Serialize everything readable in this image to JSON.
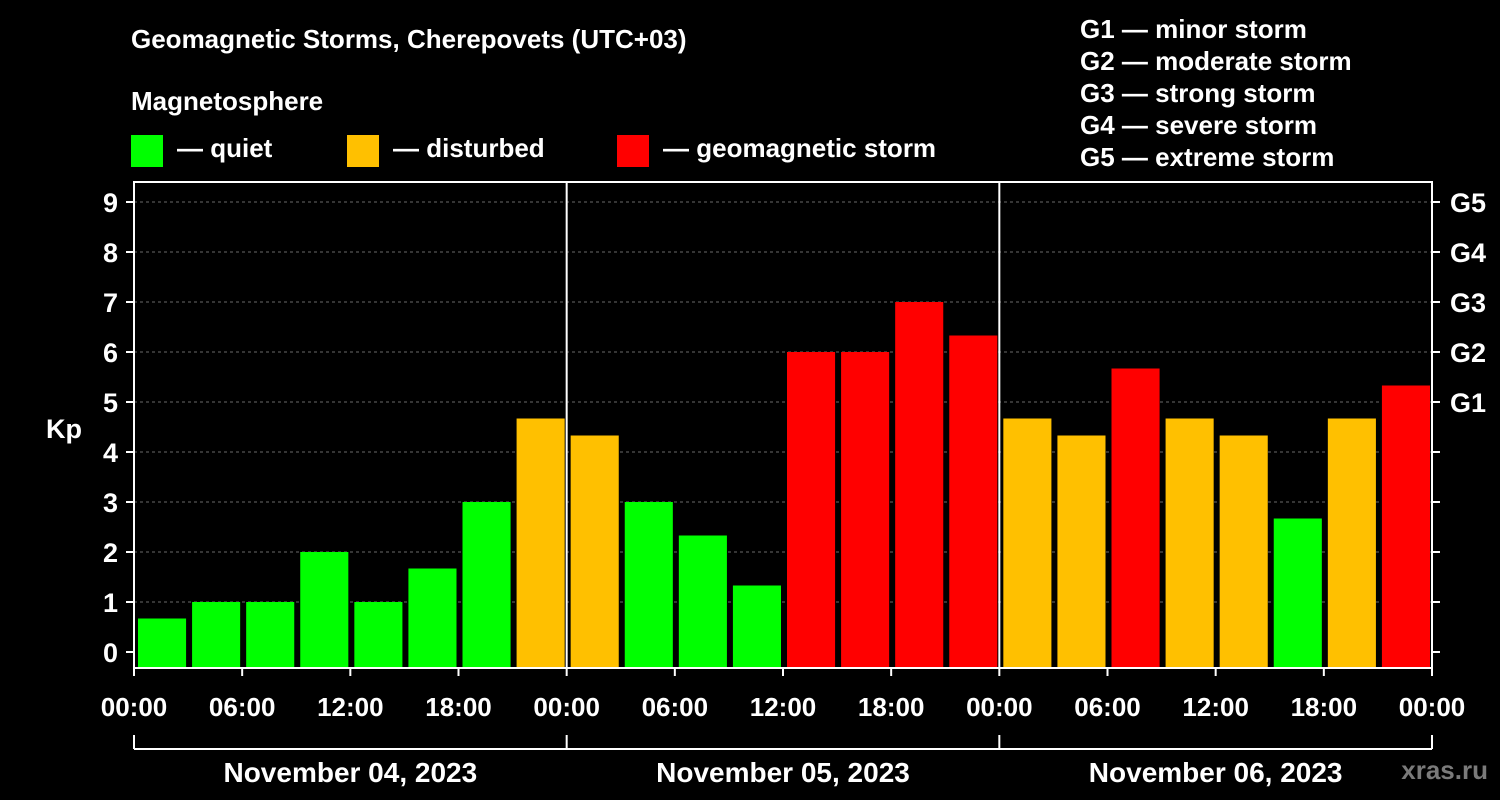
{
  "header": {
    "title": "Geomagnetic Storms, Cherepovets (UTC+03)",
    "subtitle": "Magnetosphere"
  },
  "legend": [
    {
      "label": "— quiet",
      "color": "#00ff00"
    },
    {
      "label": "— disturbed",
      "color": "#ffc000"
    },
    {
      "label": "— geomagnetic storm",
      "color": "#ff0000"
    }
  ],
  "storm_scale": [
    "G1 — minor storm",
    "G2 — moderate storm",
    "G3 — strong storm",
    "G4 — severe storm",
    "G5 — extreme storm"
  ],
  "watermark": "xras.ru",
  "chart_data": {
    "type": "bar",
    "ylabel": "Kp",
    "ylim": [
      0,
      9
    ],
    "y_ticks": [
      "0",
      "1",
      "2",
      "3",
      "4",
      "5",
      "6",
      "7",
      "8",
      "9"
    ],
    "right_ticks": [
      {
        "kp": 5,
        "label": "G1"
      },
      {
        "kp": 6,
        "label": "G2"
      },
      {
        "kp": 7,
        "label": "G3"
      },
      {
        "kp": 8,
        "label": "G4"
      },
      {
        "kp": 9,
        "label": "G5"
      }
    ],
    "x_tick_labels": [
      "00:00",
      "06:00",
      "12:00",
      "18:00",
      "00:00",
      "06:00",
      "12:00",
      "18:00",
      "00:00",
      "06:00",
      "12:00",
      "18:00",
      "00:00"
    ],
    "days": [
      "November 04, 2023",
      "November 05, 2023",
      "November 06, 2023"
    ],
    "grid": "horizontal dashed",
    "values": [
      0.67,
      1.0,
      1.0,
      2.0,
      1.0,
      1.67,
      3.0,
      4.67,
      4.33,
      3.0,
      2.33,
      1.33,
      6.0,
      6.0,
      7.0,
      6.33,
      4.67,
      4.33,
      5.67,
      4.67,
      4.33,
      2.67,
      4.67,
      5.33
    ],
    "colors": {
      "quiet": "#00ff00",
      "disturbed": "#ffc000",
      "storm": "#ff0000"
    }
  }
}
